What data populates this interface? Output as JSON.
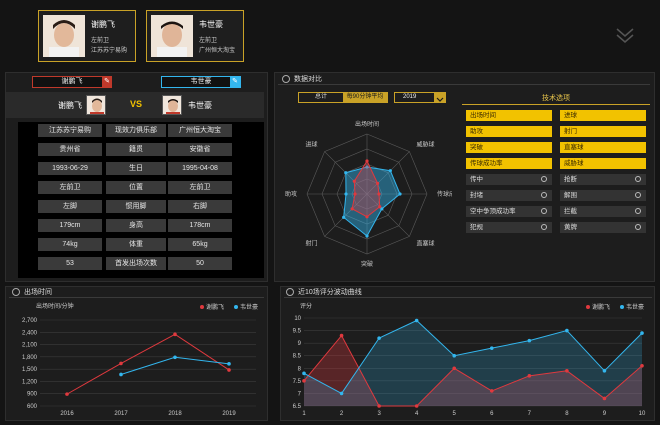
{
  "players": [
    {
      "name": "谢鹏飞",
      "position": "左前卫",
      "club": "江苏苏宁易购"
    },
    {
      "name": "韦世豪",
      "position": "左前卫",
      "club": "广州恒大淘宝"
    }
  ],
  "compare_panel": {
    "left_selected": "谢鹏飞",
    "right_selected": "韦世豪",
    "left_name": "谢鹏飞",
    "vs_label": "VS",
    "right_name": "韦世豪",
    "rows": [
      {
        "left": "江苏苏宁易购",
        "label": "现效力俱乐部",
        "right": "广州恒大淘宝"
      },
      {
        "left": "贵州省",
        "label": "籍贯",
        "right": "安徽省"
      },
      {
        "left": "1993-06-29",
        "label": "生日",
        "right": "1995-04-08"
      },
      {
        "left": "左前卫",
        "label": "位置",
        "right": "左前卫"
      },
      {
        "left": "左脚",
        "label": "惯用脚",
        "right": "右脚"
      },
      {
        "left": "179cm",
        "label": "身高",
        "right": "178cm"
      },
      {
        "left": "74kg",
        "label": "体重",
        "right": "65kg"
      },
      {
        "left": "53",
        "label": "首发出场次数",
        "right": "50"
      }
    ]
  },
  "data_compare": {
    "title": "数据对比",
    "tab_total": "总计",
    "tab_avg": "每90分钟平均",
    "year": "2019",
    "skills_title": "技术选项",
    "skills": [
      {
        "label": "出场时间",
        "on": true
      },
      {
        "label": "进球",
        "on": true
      },
      {
        "label": "助攻",
        "on": true
      },
      {
        "label": "射门",
        "on": true
      },
      {
        "label": "突破",
        "on": true
      },
      {
        "label": "直塞球",
        "on": true
      },
      {
        "label": "传球成功率",
        "on": true
      },
      {
        "label": "威胁球",
        "on": true
      },
      {
        "label": "传中",
        "on": false
      },
      {
        "label": "抢断",
        "on": false
      },
      {
        "label": "封堵",
        "on": false
      },
      {
        "label": "解围",
        "on": false
      },
      {
        "label": "空中争顶成功率",
        "on": false
      },
      {
        "label": "拦截",
        "on": false
      },
      {
        "label": "犯规",
        "on": false
      },
      {
        "label": "黄牌",
        "on": false
      }
    ]
  },
  "minutes_panel": {
    "title": "出场时间"
  },
  "rating_panel": {
    "title": "近10场评分波动曲线"
  },
  "colors": {
    "p1": "#e0393e",
    "p2": "#33b6ee",
    "gold": "#c9a227"
  },
  "chart_data": [
    {
      "type": "radar",
      "axes": [
        "出场时间",
        "威胁球",
        "传球成功率",
        "直塞球",
        "突破",
        "射门",
        "助攻",
        "进球"
      ],
      "series": [
        {
          "name": "谢鹏飞",
          "values": [
            0.55,
            0.25,
            0.2,
            0.3,
            0.38,
            0.35,
            0.2,
            0.3
          ]
        },
        {
          "name": "韦世豪",
          "values": [
            0.45,
            0.55,
            0.55,
            0.35,
            0.7,
            0.55,
            0.35,
            0.5
          ]
        }
      ]
    },
    {
      "type": "line",
      "ylabel": "出场时间/分钟",
      "x": [
        "2016",
        "2017",
        "2018",
        "2019"
      ],
      "yticks": [
        "600",
        "900",
        "1,200",
        "1,500",
        "1,800",
        "2,100",
        "2,400",
        "2,700"
      ],
      "ylim": [
        600,
        2700
      ],
      "legend": "top-right",
      "series": [
        {
          "name": "谢鹏飞",
          "values": [
            890,
            1640,
            2350,
            1480
          ]
        },
        {
          "name": "韦世豪",
          "values": [
            null,
            1370,
            1790,
            1630
          ]
        }
      ]
    },
    {
      "type": "area",
      "ylabel": "评分",
      "x": [
        "1",
        "2",
        "3",
        "4",
        "5",
        "6",
        "7",
        "8",
        "9",
        "10"
      ],
      "yticks": [
        "6.5",
        "7",
        "7.5",
        "8",
        "8.5",
        "9",
        "9.5",
        "10"
      ],
      "ylim": [
        6.5,
        10
      ],
      "legend": "top-right",
      "series": [
        {
          "name": "谢鹏飞",
          "values": [
            7.5,
            9.3,
            6.5,
            6.5,
            8.0,
            7.1,
            7.7,
            7.9,
            6.8,
            8.1
          ]
        },
        {
          "name": "韦世豪",
          "values": [
            7.8,
            7.0,
            9.2,
            9.9,
            8.5,
            8.8,
            9.1,
            9.5,
            7.9,
            9.4
          ]
        }
      ]
    }
  ]
}
